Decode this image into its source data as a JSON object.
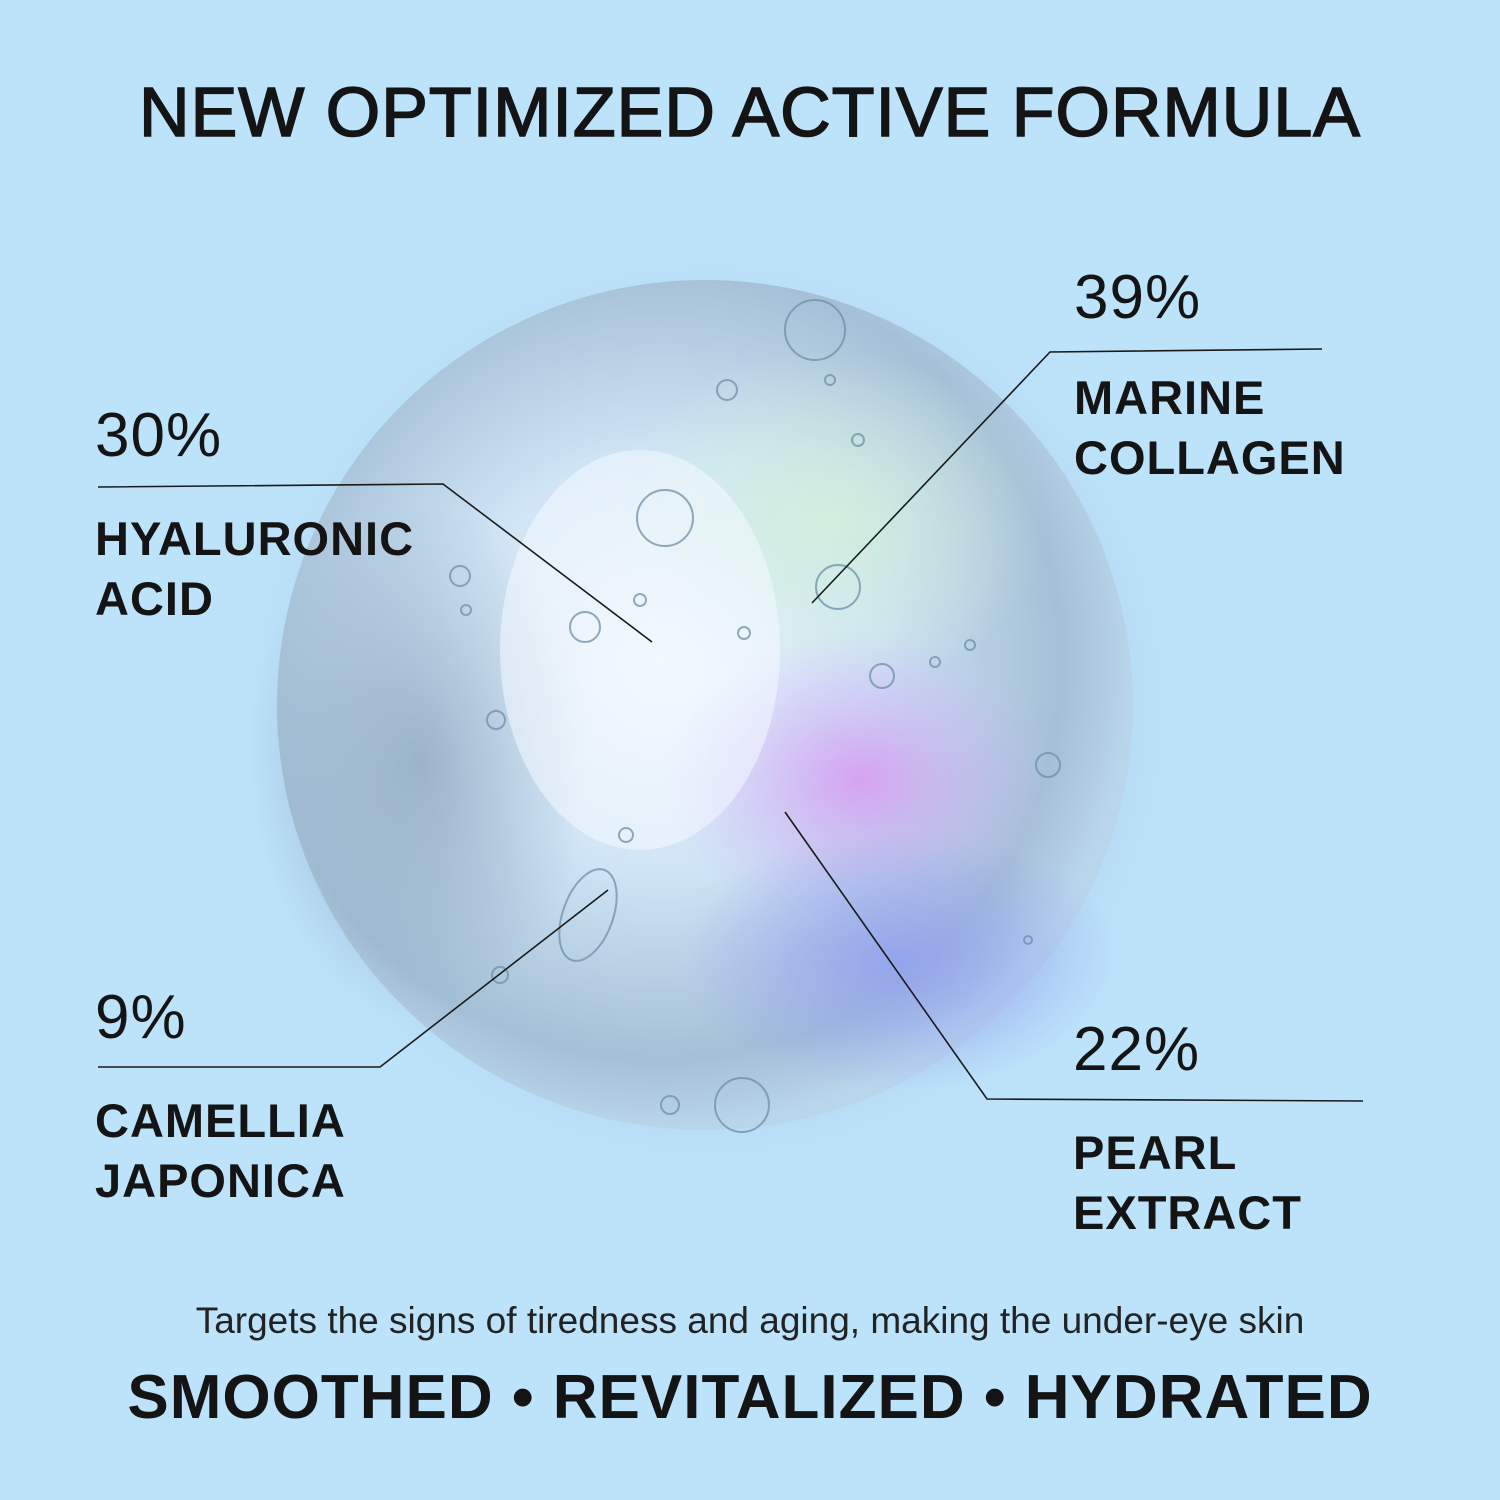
{
  "title": "NEW OPTIMIZED ACTIVE FORMULA",
  "ingredients": [
    {
      "percent": "30%",
      "name_line1": "HYALURONIC",
      "name_line2": "ACID"
    },
    {
      "percent": "39%",
      "name_line1": "MARINE",
      "name_line2": "COLLAGEN"
    },
    {
      "percent": "9%",
      "name_line1": "CAMELLIA",
      "name_line2": "JAPONICA"
    },
    {
      "percent": "22%",
      "name_line1": "PEARL",
      "name_line2": "EXTRACT"
    }
  ],
  "tagline": "Targets the signs of tiredness and aging, making the under-eye skin",
  "benefits": "SMOOTHED • REVITALIZED • HYDRATED",
  "colors": {
    "background": "#bde3fb",
    "text": "#141414"
  }
}
